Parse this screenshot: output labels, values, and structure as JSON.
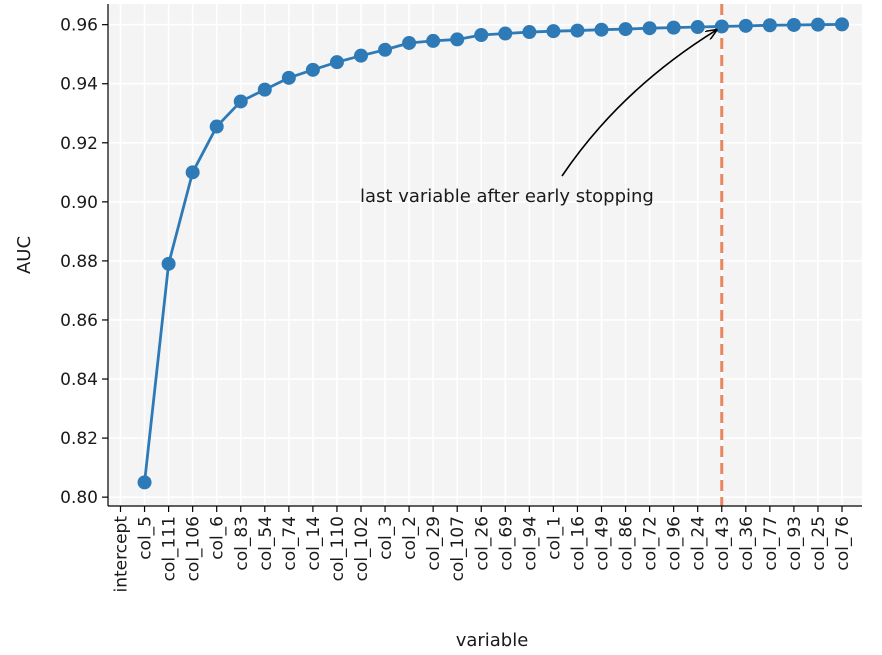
{
  "chart_data": {
    "type": "line",
    "xlabel": "variable",
    "ylabel": "AUC",
    "ylim": [
      0.797,
      0.967
    ],
    "yticks": [
      0.8,
      0.82,
      0.84,
      0.86,
      0.88,
      0.9,
      0.92,
      0.94,
      0.96
    ],
    "grid": true,
    "categories": [
      "intercept",
      "col_5",
      "col_111",
      "col_106",
      "col_6",
      "col_83",
      "col_54",
      "col_74",
      "col_14",
      "col_110",
      "col_102",
      "col_3",
      "col_2",
      "col_29",
      "col_107",
      "col_26",
      "col_69",
      "col_94",
      "col_1",
      "col_16",
      "col_49",
      "col_86",
      "col_72",
      "col_96",
      "col_24",
      "col_43",
      "col_36",
      "col_77",
      "col_93",
      "col_25",
      "col_76"
    ],
    "series": [
      {
        "color": "#2e7ab6",
        "points": [
          {
            "x": "col_5",
            "y": 0.805
          },
          {
            "x": "col_111",
            "y": 0.879
          },
          {
            "x": "col_106",
            "y": 0.91
          },
          {
            "x": "col_6",
            "y": 0.9255
          },
          {
            "x": "col_83",
            "y": 0.934
          },
          {
            "x": "col_54",
            "y": 0.938
          },
          {
            "x": "col_74",
            "y": 0.942
          },
          {
            "x": "col_14",
            "y": 0.9447
          },
          {
            "x": "col_110",
            "y": 0.9473
          },
          {
            "x": "col_102",
            "y": 0.9495
          },
          {
            "x": "col_3",
            "y": 0.9515
          },
          {
            "x": "col_2",
            "y": 0.9538
          },
          {
            "x": "col_29",
            "y": 0.9545
          },
          {
            "x": "col_107",
            "y": 0.955
          },
          {
            "x": "col_26",
            "y": 0.9565
          },
          {
            "x": "col_69",
            "y": 0.957
          },
          {
            "x": "col_94",
            "y": 0.9575
          },
          {
            "x": "col_1",
            "y": 0.9578
          },
          {
            "x": "col_16",
            "y": 0.958
          },
          {
            "x": "col_49",
            "y": 0.9583
          },
          {
            "x": "col_86",
            "y": 0.9585
          },
          {
            "x": "col_72",
            "y": 0.9588
          },
          {
            "x": "col_96",
            "y": 0.959
          },
          {
            "x": "col_24",
            "y": 0.9592
          },
          {
            "x": "col_43",
            "y": 0.9594
          },
          {
            "x": "col_36",
            "y": 0.9596
          },
          {
            "x": "col_77",
            "y": 0.9598
          },
          {
            "x": "col_93",
            "y": 0.9599
          },
          {
            "x": "col_25",
            "y": 0.96
          },
          {
            "x": "col_76",
            "y": 0.9601
          }
        ]
      }
    ],
    "vline": {
      "x": "col_43",
      "color": "#e8875e"
    },
    "annotation": {
      "text": "last variable after early stopping",
      "target": {
        "x": "col_43",
        "y": 0.9594
      }
    },
    "colors": {
      "background": "#f4f4f4",
      "grid": "#ffffff"
    }
  }
}
